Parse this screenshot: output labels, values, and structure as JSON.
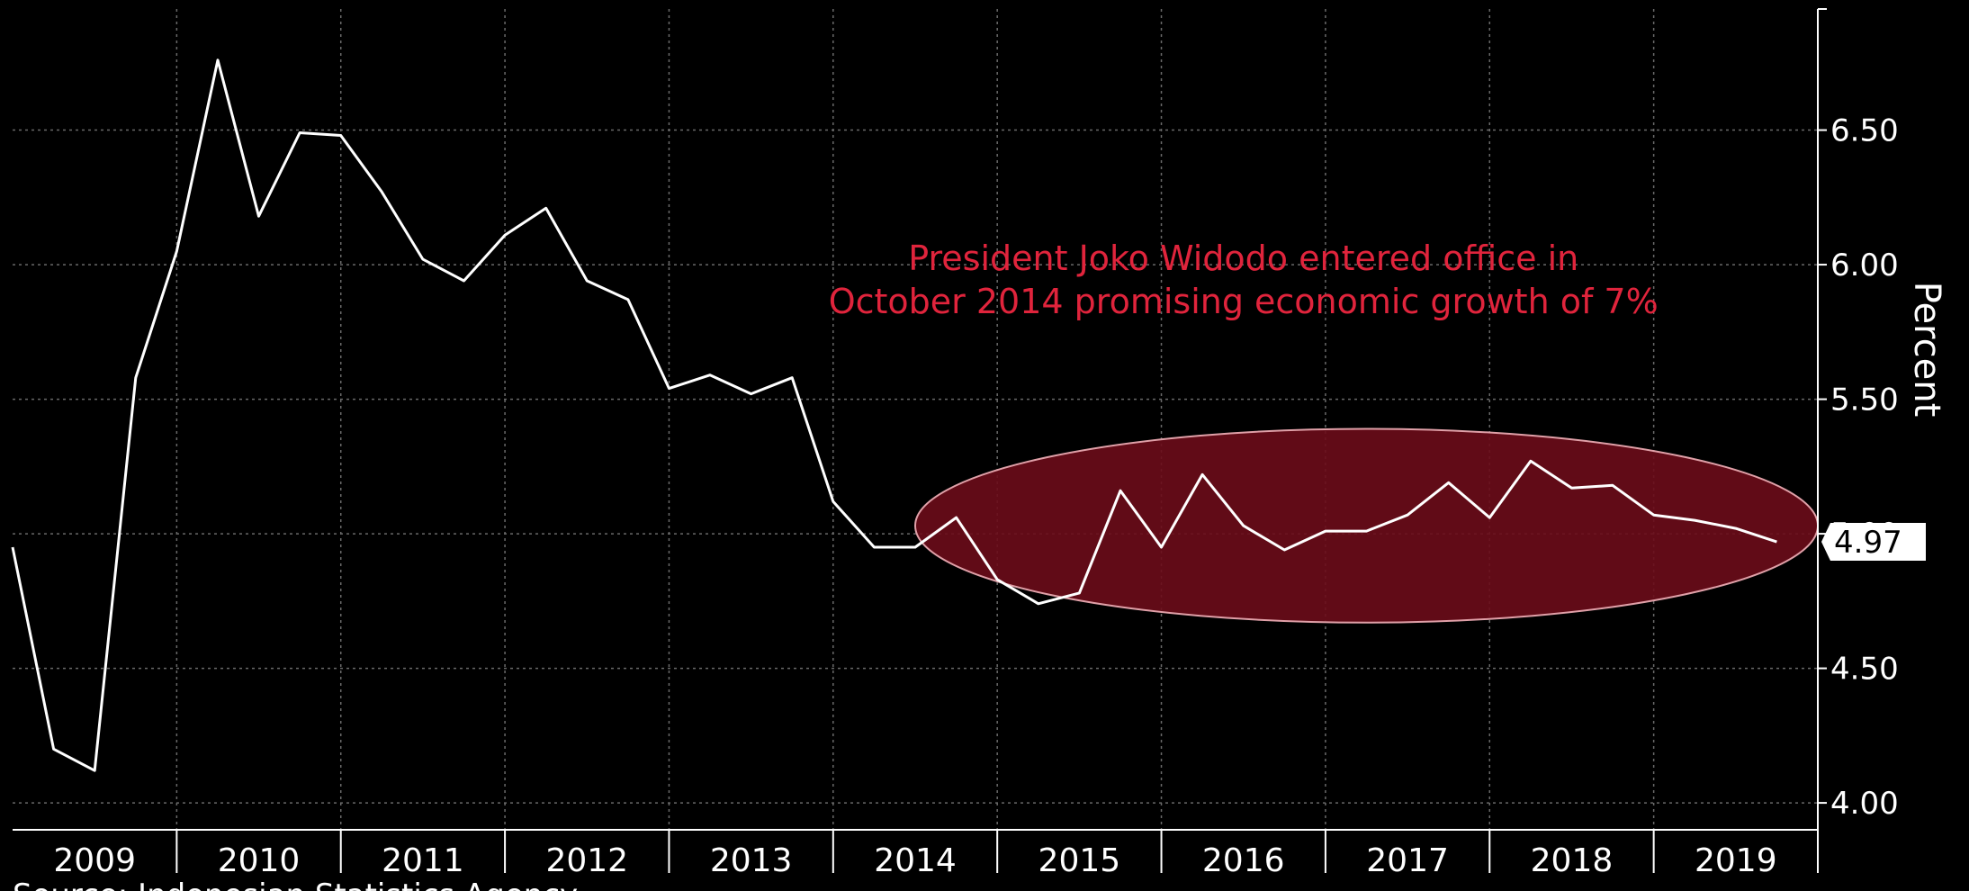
{
  "chart_data": {
    "type": "line",
    "ylabel": "Percent",
    "ylim": [
      3.9,
      6.95
    ],
    "yticks": [
      "4.00",
      "4.50",
      "5.00",
      "5.50",
      "6.00",
      "6.50"
    ],
    "years": [
      "2009",
      "2010",
      "2011",
      "2012",
      "2013",
      "2014",
      "2015",
      "2016",
      "2017",
      "2018",
      "2019"
    ],
    "x_range": [
      2009.0,
      2020.0
    ],
    "series": [
      {
        "name": "",
        "x": [
          2009.0,
          2009.25,
          2009.5,
          2009.75,
          2010.0,
          2010.25,
          2010.5,
          2010.75,
          2011.0,
          2011.25,
          2011.5,
          2011.75,
          2012.0,
          2012.25,
          2012.5,
          2012.75,
          2013.0,
          2013.25,
          2013.5,
          2013.75,
          2014.0,
          2014.25,
          2014.5,
          2014.75,
          2015.0,
          2015.25,
          2015.5,
          2015.75,
          2016.0,
          2016.25,
          2016.5,
          2016.75,
          2017.0,
          2017.25,
          2017.5,
          2017.75,
          2018.0,
          2018.25,
          2018.5,
          2018.75,
          2019.0,
          2019.25,
          2019.5,
          2019.75
        ],
        "values": [
          4.95,
          4.2,
          4.12,
          5.58,
          6.05,
          6.76,
          6.18,
          6.49,
          6.48,
          6.27,
          6.02,
          5.94,
          6.11,
          6.21,
          5.94,
          5.87,
          5.54,
          5.59,
          5.52,
          5.58,
          5.12,
          4.95,
          4.95,
          5.06,
          4.83,
          4.74,
          4.78,
          5.16,
          4.95,
          5.22,
          5.03,
          4.94,
          5.01,
          5.01,
          5.07,
          5.19,
          5.06,
          5.27,
          5.17,
          5.18,
          5.07,
          5.05,
          5.02,
          4.97
        ]
      }
    ],
    "last_value_label": "4.97",
    "highlight_ellipse": {
      "x_from": 2014.5,
      "x_to": 2020.0,
      "y_center": 5.03,
      "y_half_height": 0.36
    },
    "annotation": {
      "lines": [
        "President Joko Widodo entered office in",
        "October 2014 promising economic growth of 7%"
      ],
      "x": 2016.5,
      "y": 5.98
    },
    "grid": true,
    "legend": "none"
  },
  "source_text": "Source: Indonesian Statistics Agency",
  "colors": {
    "background": "#000000",
    "line": "#ffffff",
    "grid": "#6a6a6a",
    "annotation": "#e0243c",
    "highlight_fill": "#6b0c1a",
    "highlight_stroke": "#e0a0a8",
    "badge_fill": "#ffffff"
  }
}
